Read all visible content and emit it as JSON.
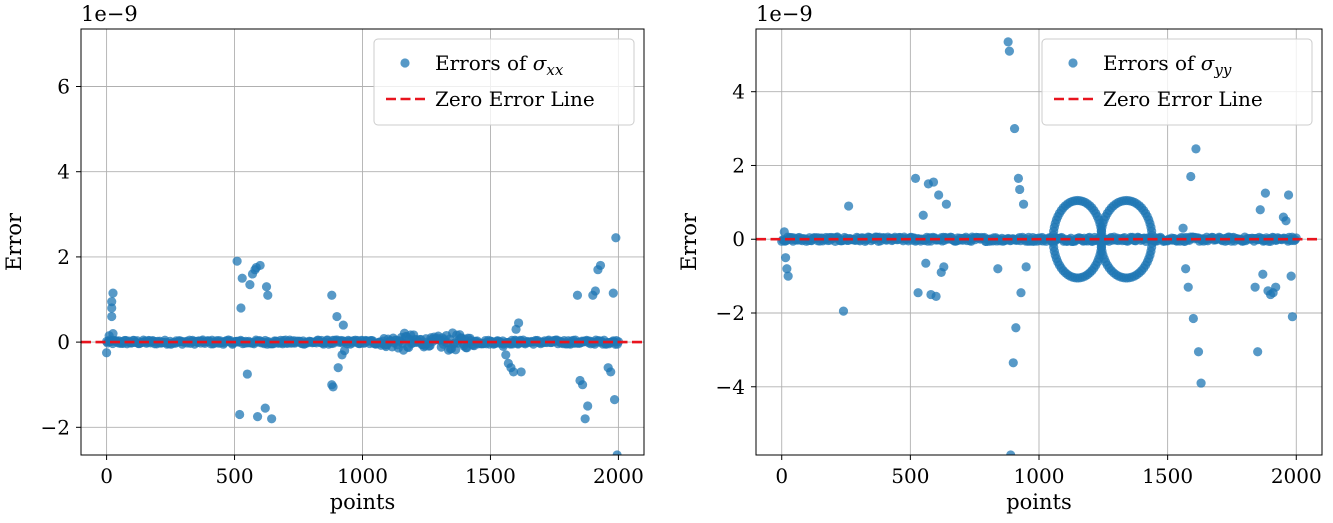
{
  "chart_data": [
    {
      "type": "scatter",
      "title": "",
      "xlabel": "points",
      "ylabel": "Error",
      "offset_text": "1e−9",
      "xlim": [
        -100,
        2100
      ],
      "ylim": [
        -2.65,
        7.35
      ],
      "xticks": [
        0,
        500,
        1000,
        1500,
        2000
      ],
      "xtick_labels": [
        "0",
        "500",
        "1000",
        "1500",
        "2000"
      ],
      "yticks": [
        -2,
        0,
        2,
        4,
        6
      ],
      "ytick_labels": [
        "−2",
        "0",
        "2",
        "4",
        "6"
      ],
      "grid": true,
      "legend_placement": "top-right",
      "series": [
        {
          "name": "Errors of σxx",
          "name_base": "Errors of ",
          "name_sigma": "σ",
          "name_sub": "xx",
          "kind": "scatter",
          "color": "#1f77b4",
          "x": [
            0,
            10,
            20,
            20,
            20,
            25,
            25,
            510,
            520,
            525,
            530,
            550,
            560,
            570,
            580,
            585,
            590,
            600,
            620,
            625,
            630,
            645,
            880,
            880,
            885,
            900,
            905,
            920,
            925,
            930,
            1550,
            1560,
            1570,
            1580,
            1590,
            1600,
            1610,
            1620,
            1840,
            1850,
            1860,
            1870,
            1880,
            1900,
            1910,
            1920,
            1930,
            1960,
            1970,
            1980,
            1985,
            1990,
            1995
          ],
          "y": [
            -0.25,
            0.15,
            0.6,
            0.8,
            0.95,
            1.15,
            0.2,
            1.9,
            -1.7,
            0.8,
            1.5,
            -0.75,
            1.35,
            1.6,
            1.7,
            1.75,
            -1.75,
            1.8,
            -1.55,
            1.3,
            1.1,
            -1.8,
            1.1,
            -1.0,
            -1.05,
            0.6,
            -0.6,
            -0.3,
            0.4,
            -0.2,
            -0.1,
            -0.3,
            -0.5,
            -0.6,
            -0.7,
            0.3,
            0.45,
            -0.7,
            1.1,
            -0.9,
            -1.0,
            -1.8,
            -1.5,
            1.1,
            1.2,
            1.7,
            1.8,
            -0.6,
            -0.7,
            1.15,
            -1.35,
            2.45,
            -2.65
          ]
        },
        {
          "name": "Zero Error Line",
          "kind": "hline",
          "y": 0,
          "color": "#e8141e"
        }
      ]
    },
    {
      "type": "scatter",
      "title": "",
      "xlabel": "points",
      "ylabel": "Error",
      "offset_text": "1e−9",
      "xlim": [
        -100,
        2100
      ],
      "ylim": [
        -5.85,
        5.7
      ],
      "xticks": [
        0,
        500,
        1000,
        1500,
        2000
      ],
      "xtick_labels": [
        "0",
        "500",
        "1000",
        "1500",
        "2000"
      ],
      "yticks": [
        -4,
        -2,
        0,
        2,
        4
      ],
      "ytick_labels": [
        "−4",
        "−2",
        "0",
        "2",
        "4"
      ],
      "grid": true,
      "legend_placement": "top-right",
      "series": [
        {
          "name": "Errors of σyy",
          "name_base": "Errors of ",
          "name_sigma": "σ",
          "name_sub": "yy",
          "kind": "scatter",
          "color": "#1f77b4",
          "x": [
            10,
            15,
            20,
            25,
            240,
            260,
            520,
            530,
            550,
            560,
            570,
            580,
            590,
            600,
            610,
            620,
            630,
            640,
            840,
            880,
            885,
            890,
            900,
            905,
            910,
            920,
            925,
            930,
            940,
            950,
            1560,
            1570,
            1580,
            1590,
            1600,
            1610,
            1620,
            1630,
            1840,
            1850,
            1860,
            1870,
            1880,
            1890,
            1900,
            1910,
            1920,
            1950,
            1960,
            1970,
            1980,
            1985
          ],
          "y": [
            0.2,
            -0.5,
            -0.8,
            -1.0,
            -1.95,
            0.9,
            1.65,
            -1.45,
            0.65,
            -0.65,
            1.5,
            -1.5,
            1.55,
            -1.55,
            1.2,
            -0.9,
            -0.75,
            0.95,
            -0.8,
            5.35,
            5.1,
            -5.85,
            -3.35,
            3.0,
            -2.4,
            1.65,
            1.35,
            -1.45,
            0.95,
            -0.75,
            0.3,
            -0.8,
            -1.3,
            1.7,
            -2.15,
            2.45,
            -3.05,
            -3.9,
            -1.3,
            -3.05,
            0.8,
            -0.95,
            1.25,
            -1.4,
            -1.5,
            -1.45,
            -1.3,
            0.6,
            0.5,
            1.2,
            -1.0,
            -2.1
          ]
        },
        {
          "name": "Zero Error Line",
          "kind": "hline",
          "y": 0,
          "color": "#e8141e"
        }
      ]
    }
  ]
}
